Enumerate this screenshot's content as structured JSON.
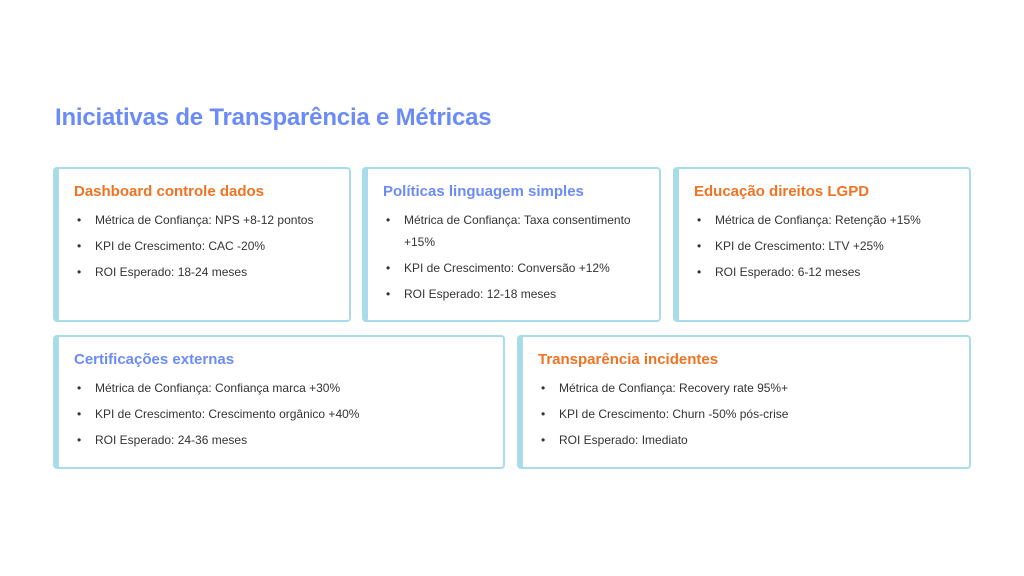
{
  "title": "Iniciativas de Transparência e Métricas",
  "colors": {
    "title": "#6b8cf6",
    "orange_heading": "#f07322",
    "blue_heading": "#6b8cf6",
    "card_border": "#a9dcea"
  },
  "cards": [
    {
      "title": "Dashboard controle dados",
      "items": [
        "Métrica de Confiança: NPS +8-12 pontos",
        "KPI de Crescimento: CAC -20%",
        "ROI Esperado: 18-24 meses"
      ]
    },
    {
      "title": "Políticas linguagem simples",
      "items": [
        "Métrica de Confiança: Taxa consentimento +15%",
        "KPI de Crescimento: Conversão +12%",
        "ROI Esperado: 12-18 meses"
      ]
    },
    {
      "title": "Educação direitos LGPD",
      "items": [
        "Métrica de Confiança: Retenção +15%",
        "KPI de Crescimento: LTV +25%",
        "ROI Esperado: 6-12 meses"
      ]
    },
    {
      "title": "Certificações externas",
      "items": [
        "Métrica de Confiança: Confiança marca +30%",
        "KPI de Crescimento: Crescimento orgânico +40%",
        "ROI Esperado: 24-36 meses"
      ]
    },
    {
      "title": "Transparência incidentes",
      "items": [
        "Métrica de Confiança: Recovery rate 95%+",
        "KPI de Crescimento: Churn -50% pós-crise",
        "ROI Esperado: Imediato"
      ]
    }
  ]
}
